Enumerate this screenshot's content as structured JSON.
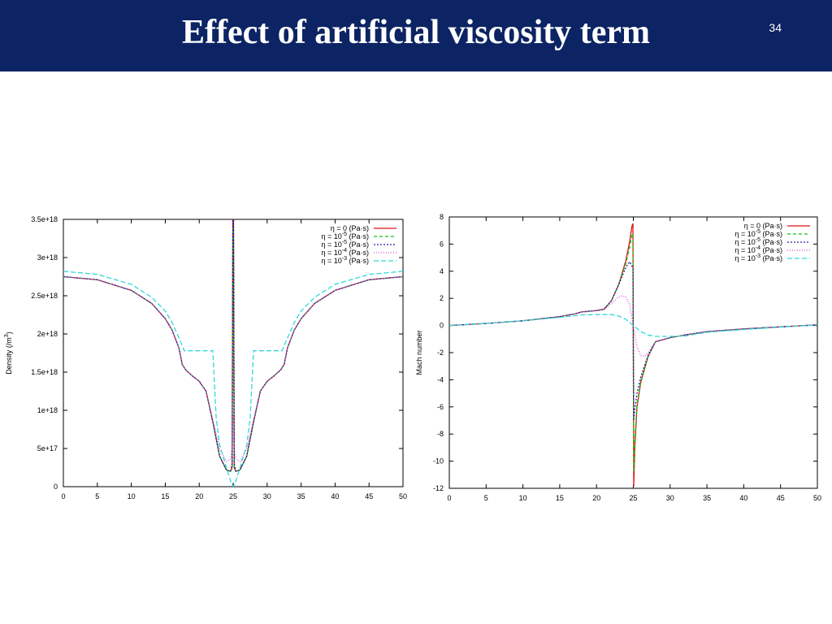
{
  "slide": {
    "title": "Effect of artificial viscosity term",
    "page_number": "34",
    "header_color": "#0c2463"
  },
  "chart_data": [
    {
      "type": "line",
      "title": "",
      "xlabel": "",
      "ylabel": "Density (/m^3)",
      "ylabel_parts": [
        "Density (/m",
        "3",
        ")"
      ],
      "xlim": [
        0,
        50
      ],
      "ylim": [
        0,
        3.5e+18
      ],
      "xticks": [
        "0",
        "5",
        "10",
        "15",
        "20",
        "25",
        "30",
        "35",
        "40",
        "45",
        "50"
      ],
      "yticks": [
        {
          "v": 0,
          "label": "0"
        },
        {
          "v": 5e+17,
          "label": "5e+17"
        },
        {
          "v": 1e+18,
          "label": "1e+18"
        },
        {
          "v": 1.5e+18,
          "label": "1.5e+18"
        },
        {
          "v": 2e+18,
          "label": "2e+18"
        },
        {
          "v": 2.5e+18,
          "label": "2.5e+18"
        },
        {
          "v": 3e+18,
          "label": "3e+18"
        },
        {
          "v": 3.5e+18,
          "label": "3.5e+18"
        }
      ],
      "grid": false,
      "legend_position": "top-right",
      "series": [
        {
          "name": "η = 0 (Pa·s)",
          "legend_base": "η = 0",
          "legend_sup": "",
          "legend_unit": "(Pa·s)",
          "color": "#e01010",
          "dash": "",
          "x": [
            0,
            5,
            10,
            13,
            15,
            16,
            17,
            17.5,
            18,
            19,
            20,
            21,
            22,
            23,
            24,
            24.6,
            24.85,
            24.95,
            25.05,
            25.15,
            25.4,
            26,
            27,
            28,
            29,
            30,
            31,
            32,
            32.5,
            33,
            34,
            35,
            37,
            40,
            45,
            50
          ],
          "y": [
            2.75e+18,
            2.71e+18,
            2.57e+18,
            2.4e+18,
            2.2e+18,
            2.05e+18,
            1.82e+18,
            1.6e+18,
            1.53e+18,
            1.45e+18,
            1.38e+18,
            1.25e+18,
            8.5e+17,
            4e+17,
            2.2e+17,
            2e+17,
            2.5e+17,
            3.5e+18,
            3.5e+18,
            2.5e+17,
            2e+17,
            2.2e+17,
            4e+17,
            8.5e+17,
            1.25e+18,
            1.38e+18,
            1.45e+18,
            1.53e+18,
            1.6e+18,
            1.82e+18,
            2.05e+18,
            2.2e+18,
            2.4e+18,
            2.57e+18,
            2.71e+18,
            2.75e+18
          ]
        },
        {
          "name": "η = 10-5 (Pa·s)",
          "legend_base": "η = 10",
          "legend_sup": "-5",
          "legend_unit": "(Pa·s)",
          "color": "#10c010",
          "dash": "4,3",
          "x": [
            0,
            5,
            10,
            13,
            15,
            16,
            17,
            17.5,
            18,
            19,
            20,
            21,
            22,
            23,
            24,
            24.6,
            24.85,
            24.95,
            25.05,
            25.15,
            25.4,
            26,
            27,
            28,
            29,
            30,
            31,
            32,
            32.5,
            33,
            34,
            35,
            37,
            40,
            45,
            50
          ],
          "y": [
            2.75e+18,
            2.71e+18,
            2.57e+18,
            2.4e+18,
            2.2e+18,
            2.05e+18,
            1.82e+18,
            1.6e+18,
            1.53e+18,
            1.45e+18,
            1.38e+18,
            1.25e+18,
            8.5e+17,
            4e+17,
            2.2e+17,
            2e+17,
            2.6e+17,
            3.4e+18,
            3.4e+18,
            2.6e+17,
            2e+17,
            2.2e+17,
            4e+17,
            8.5e+17,
            1.25e+18,
            1.38e+18,
            1.45e+18,
            1.53e+18,
            1.6e+18,
            1.82e+18,
            2.05e+18,
            2.2e+18,
            2.4e+18,
            2.57e+18,
            2.71e+18,
            2.75e+18
          ]
        },
        {
          "name": "η = 10-5 (Pa·s)",
          "legend_base": "η = 10",
          "legend_sup": "-5",
          "legend_unit": "(Pa·s)",
          "color": "#2020a0",
          "dash": "2,2",
          "x": [
            0,
            5,
            10,
            13,
            15,
            16,
            17,
            17.5,
            18,
            19,
            20,
            21,
            22,
            23,
            24,
            24.6,
            24.85,
            24.95,
            25.05,
            25.15,
            25.4,
            26,
            27,
            28,
            29,
            30,
            31,
            32,
            32.5,
            33,
            34,
            35,
            37,
            40,
            45,
            50
          ],
          "y": [
            2.75e+18,
            2.71e+18,
            2.57e+18,
            2.4e+18,
            2.2e+18,
            2.05e+18,
            1.82e+18,
            1.6e+18,
            1.53e+18,
            1.45e+18,
            1.38e+18,
            1.25e+18,
            8.5e+17,
            4e+17,
            2.2e+17,
            2e+17,
            3e+17,
            3.5e+18,
            3.5e+18,
            3e+17,
            2e+17,
            2.2e+17,
            4e+17,
            8.5e+17,
            1.25e+18,
            1.38e+18,
            1.45e+18,
            1.53e+18,
            1.6e+18,
            1.82e+18,
            2.05e+18,
            2.2e+18,
            2.4e+18,
            2.57e+18,
            2.71e+18,
            2.75e+18
          ]
        },
        {
          "name": "η = 10-4 (Pa·s)",
          "legend_base": "η = 10",
          "legend_sup": "-4",
          "legend_unit": "(Pa·s)",
          "color": "#e040e0",
          "dash": "1,2",
          "x": [
            0,
            5,
            10,
            13,
            15,
            16,
            17,
            17.5,
            18,
            19,
            20,
            21,
            22,
            23,
            24,
            24.6,
            24.9,
            25,
            25.1,
            25.4,
            26,
            27,
            28,
            29,
            30,
            31,
            32,
            32.5,
            33,
            34,
            35,
            37,
            40,
            45,
            50
          ],
          "y": [
            2.75e+18,
            2.71e+18,
            2.57e+18,
            2.4e+18,
            2.2e+18,
            2.05e+18,
            1.82e+18,
            1.6e+18,
            1.53e+18,
            1.45e+18,
            1.38e+18,
            1.25e+18,
            8.8e+17,
            5e+17,
            3.3e+17,
            3.6e+17,
            5.5e+17,
            9.5e+17,
            5.5e+17,
            3.6e+17,
            3.3e+17,
            5e+17,
            8.8e+17,
            1.25e+18,
            1.38e+18,
            1.45e+18,
            1.53e+18,
            1.6e+18,
            1.82e+18,
            2.05e+18,
            2.2e+18,
            2.4e+18,
            2.57e+18,
            2.71e+18,
            2.75e+18
          ]
        },
        {
          "name": "η = 10-3 (Pa·s)",
          "legend_base": "η = 10",
          "legend_sup": "-3",
          "legend_unit": "(Pa·s)",
          "color": "#30d8d8",
          "dash": "6,3",
          "x": [
            0,
            5,
            10,
            13,
            15,
            16,
            17,
            17.8,
            18,
            19,
            21,
            22,
            22.5,
            23,
            24,
            24.7,
            25,
            25.3,
            26,
            27,
            27.5,
            28,
            29,
            31,
            32,
            32.2,
            33,
            34,
            35,
            37,
            40,
            45,
            50
          ],
          "y": [
            2.82e+18,
            2.78e+18,
            2.65e+18,
            2.48e+18,
            2.3e+18,
            2.15e+18,
            1.95e+18,
            1.78e+18,
            1.78e+18,
            1.78e+18,
            1.78e+18,
            1.78e+18,
            9e+17,
            5.5e+17,
            2.5e+17,
            5e+16,
            0.0,
            5e+16,
            2.5e+17,
            5.5e+17,
            9e+17,
            1.78e+18,
            1.78e+18,
            1.78e+18,
            1.78e+18,
            1.78e+18,
            1.95e+18,
            2.15e+18,
            2.3e+18,
            2.48e+18,
            2.65e+18,
            2.78e+18,
            2.82e+18
          ]
        }
      ]
    },
    {
      "type": "line",
      "title": "",
      "xlabel": "",
      "ylabel": "Mach number",
      "ylabel_parts": [
        "Mach number",
        "",
        ""
      ],
      "xlim": [
        0,
        50
      ],
      "ylim": [
        -12,
        8
      ],
      "xticks": [
        "0",
        "5",
        "10",
        "15",
        "20",
        "25",
        "30",
        "35",
        "40",
        "45",
        "50"
      ],
      "yticks": [
        {
          "v": -12,
          "label": "-12"
        },
        {
          "v": -10,
          "label": "-10"
        },
        {
          "v": -8,
          "label": "-8"
        },
        {
          "v": -6,
          "label": "-6"
        },
        {
          "v": -4,
          "label": "-4"
        },
        {
          "v": -2,
          "label": "-2"
        },
        {
          "v": 0,
          "label": "0"
        },
        {
          "v": 2,
          "label": "2"
        },
        {
          "v": 4,
          "label": "4"
        },
        {
          "v": 6,
          "label": "6"
        },
        {
          "v": 8,
          "label": "8"
        }
      ],
      "grid": false,
      "legend_position": "top-right",
      "series": [
        {
          "name": "η = 0 (Pa·s)",
          "legend_base": "η = 0",
          "legend_sup": "",
          "legend_unit": "(Pa·s)",
          "color": "#e01010",
          "dash": "",
          "x": [
            0,
            5,
            10,
            15,
            17,
            18,
            20,
            21,
            22,
            23,
            24,
            24.5,
            24.8,
            24.95,
            25.05,
            25.2,
            25.5,
            26,
            27,
            28,
            30,
            32,
            35,
            40,
            45,
            50
          ],
          "y": [
            0,
            0.15,
            0.35,
            0.65,
            0.85,
            1.0,
            1.1,
            1.2,
            1.8,
            3.0,
            4.8,
            6.2,
            7.3,
            7.5,
            -11.8,
            -9.0,
            -6.0,
            -4.2,
            -2.3,
            -1.2,
            -0.9,
            -0.7,
            -0.45,
            -0.25,
            -0.1,
            0.05
          ]
        },
        {
          "name": "η = 10-5 (Pa·s)",
          "legend_base": "η = 10",
          "legend_sup": "-5",
          "legend_unit": "(Pa·s)",
          "color": "#10c010",
          "dash": "4,3",
          "x": [
            0,
            5,
            10,
            15,
            17,
            18,
            20,
            21,
            22,
            23,
            24,
            24.5,
            24.8,
            24.95,
            25.05,
            25.2,
            25.5,
            26,
            27,
            28,
            30,
            32,
            35,
            40,
            45,
            50
          ],
          "y": [
            0,
            0.15,
            0.35,
            0.65,
            0.85,
            1.0,
            1.1,
            1.2,
            1.8,
            3.0,
            4.6,
            5.8,
            6.6,
            6.8,
            -10.8,
            -8.5,
            -5.8,
            -4.1,
            -2.3,
            -1.2,
            -0.9,
            -0.7,
            -0.45,
            -0.25,
            -0.1,
            0.05
          ]
        },
        {
          "name": "η = 10-5 (Pa·s)",
          "legend_base": "η = 10",
          "legend_sup": "-5",
          "legend_unit": "(Pa·s)",
          "color": "#2020a0",
          "dash": "2,2",
          "x": [
            0,
            5,
            10,
            15,
            17,
            18,
            20,
            21,
            22,
            23,
            24,
            24.5,
            24.8,
            24.95,
            25.05,
            25.2,
            25.5,
            26,
            27,
            28,
            30,
            32,
            35,
            40,
            45,
            50
          ],
          "y": [
            0,
            0.15,
            0.35,
            0.65,
            0.85,
            1.0,
            1.1,
            1.2,
            1.8,
            3.0,
            4.3,
            4.7,
            4.4,
            4.2,
            -7.0,
            -6.2,
            -5.0,
            -3.8,
            -2.2,
            -1.2,
            -0.9,
            -0.7,
            -0.45,
            -0.25,
            -0.1,
            0.05
          ]
        },
        {
          "name": "η = 10-4 (Pa·s)",
          "legend_base": "η = 10",
          "legend_sup": "-4",
          "legend_unit": "(Pa·s)",
          "color": "#e040e0",
          "dash": "1,2",
          "x": [
            0,
            5,
            10,
            15,
            17,
            18,
            20,
            21,
            22,
            23,
            23.5,
            24,
            24.5,
            25,
            25.5,
            26,
            26.5,
            27,
            28,
            30,
            32,
            35,
            40,
            45,
            50
          ],
          "y": [
            0,
            0.15,
            0.35,
            0.65,
            0.85,
            1.0,
            1.1,
            1.15,
            1.6,
            2.1,
            2.2,
            2.1,
            1.5,
            0,
            -1.6,
            -2.2,
            -2.3,
            -2.0,
            -1.2,
            -0.9,
            -0.7,
            -0.45,
            -0.25,
            -0.1,
            0.05
          ]
        },
        {
          "name": "η = 10-3 (Pa·s)",
          "legend_base": "η = 10",
          "legend_sup": "-3",
          "legend_unit": "(Pa·s)",
          "color": "#30d8d8",
          "dash": "6,3",
          "x": [
            0,
            5,
            10,
            15,
            18,
            20,
            22,
            23,
            24,
            25,
            26,
            27,
            28,
            30,
            32,
            35,
            40,
            45,
            50
          ],
          "y": [
            0,
            0.15,
            0.35,
            0.6,
            0.78,
            0.8,
            0.8,
            0.7,
            0.45,
            0,
            -0.45,
            -0.7,
            -0.8,
            -0.8,
            -0.78,
            -0.5,
            -0.3,
            -0.12,
            0.05
          ]
        }
      ]
    }
  ]
}
